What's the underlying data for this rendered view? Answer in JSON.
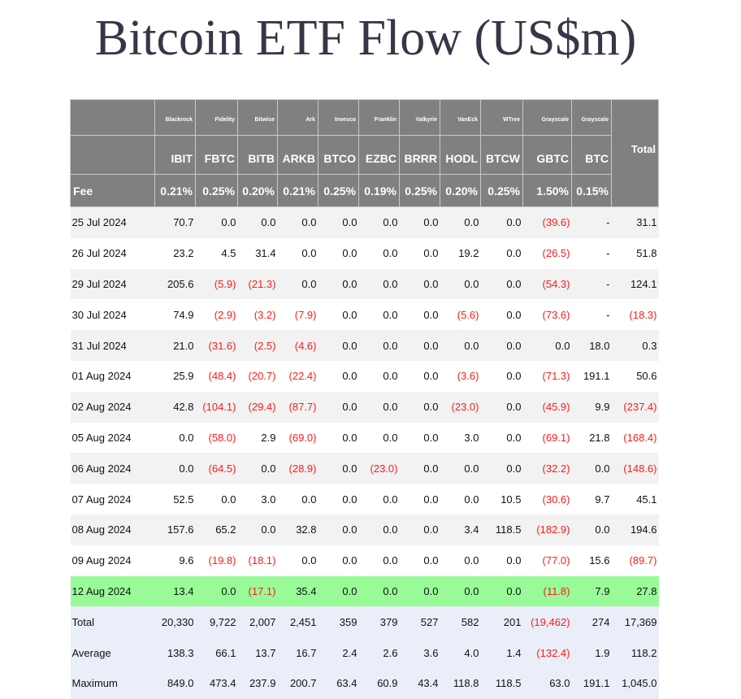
{
  "title": "Bitcoin ETF Flow (US$m)",
  "colors": {
    "header_bg": "#808080",
    "negative": "#ff1a1a",
    "highlight": "#98fb98",
    "summary_bg": "#eaeef8"
  },
  "columns": [
    {
      "issuer": "Blackrock",
      "ticker": "IBIT",
      "fee": "0.21%"
    },
    {
      "issuer": "Fidelity",
      "ticker": "FBTC",
      "fee": "0.25%"
    },
    {
      "issuer": "Bitwise",
      "ticker": "BITB",
      "fee": "0.20%"
    },
    {
      "issuer": "Ark",
      "ticker": "ARKB",
      "fee": "0.21%"
    },
    {
      "issuer": "Invesco",
      "ticker": "BTCO",
      "fee": "0.25%"
    },
    {
      "issuer": "Franklin",
      "ticker": "EZBC",
      "fee": "0.19%"
    },
    {
      "issuer": "Valkyrie",
      "ticker": "BRRR",
      "fee": "0.25%"
    },
    {
      "issuer": "VanEck",
      "ticker": "HODL",
      "fee": "0.20%"
    },
    {
      "issuer": "WTree",
      "ticker": "BTCW",
      "fee": "0.25%"
    },
    {
      "issuer": "Grayscale",
      "ticker": "GBTC",
      "fee": "1.50%"
    },
    {
      "issuer": "Grayscale",
      "ticker": "BTC",
      "fee": "0.15%"
    }
  ],
  "total_header": "Total",
  "fee_label": "Fee",
  "rows": [
    {
      "date": "25 Jul 2024",
      "values": [
        "70.7",
        "0.0",
        "0.0",
        "0.0",
        "0.0",
        "0.0",
        "0.0",
        "0.0",
        "0.0",
        "(39.6)",
        "-",
        "31.1"
      ]
    },
    {
      "date": "26 Jul 2024",
      "values": [
        "23.2",
        "4.5",
        "31.4",
        "0.0",
        "0.0",
        "0.0",
        "0.0",
        "19.2",
        "0.0",
        "(26.5)",
        "-",
        "51.8"
      ]
    },
    {
      "date": "29 Jul 2024",
      "values": [
        "205.6",
        "(5.9)",
        "(21.3)",
        "0.0",
        "0.0",
        "0.0",
        "0.0",
        "0.0",
        "0.0",
        "(54.3)",
        "-",
        "124.1"
      ]
    },
    {
      "date": "30 Jul 2024",
      "values": [
        "74.9",
        "(2.9)",
        "(3.2)",
        "(7.9)",
        "0.0",
        "0.0",
        "0.0",
        "(5.6)",
        "0.0",
        "(73.6)",
        "-",
        "(18.3)"
      ]
    },
    {
      "date": "31 Jul 2024",
      "values": [
        "21.0",
        "(31.6)",
        "(2.5)",
        "(4.6)",
        "0.0",
        "0.0",
        "0.0",
        "0.0",
        "0.0",
        "0.0",
        "18.0",
        "0.3"
      ]
    },
    {
      "date": "01 Aug 2024",
      "values": [
        "25.9",
        "(48.4)",
        "(20.7)",
        "(22.4)",
        "0.0",
        "0.0",
        "0.0",
        "(3.6)",
        "0.0",
        "(71.3)",
        "191.1",
        "50.6"
      ]
    },
    {
      "date": "02 Aug 2024",
      "values": [
        "42.8",
        "(104.1)",
        "(29.4)",
        "(87.7)",
        "0.0",
        "0.0",
        "0.0",
        "(23.0)",
        "0.0",
        "(45.9)",
        "9.9",
        "(237.4)"
      ]
    },
    {
      "date": "05 Aug 2024",
      "values": [
        "0.0",
        "(58.0)",
        "2.9",
        "(69.0)",
        "0.0",
        "0.0",
        "0.0",
        "3.0",
        "0.0",
        "(69.1)",
        "21.8",
        "(168.4)"
      ]
    },
    {
      "date": "06 Aug 2024",
      "values": [
        "0.0",
        "(64.5)",
        "0.0",
        "(28.9)",
        "0.0",
        "(23.0)",
        "0.0",
        "0.0",
        "0.0",
        "(32.2)",
        "0.0",
        "(148.6)"
      ]
    },
    {
      "date": "07 Aug 2024",
      "values": [
        "52.5",
        "0.0",
        "3.0",
        "0.0",
        "0.0",
        "0.0",
        "0.0",
        "0.0",
        "10.5",
        "(30.6)",
        "9.7",
        "45.1"
      ]
    },
    {
      "date": "08 Aug 2024",
      "values": [
        "157.6",
        "65.2",
        "0.0",
        "32.8",
        "0.0",
        "0.0",
        "0.0",
        "3.4",
        "118.5",
        "(182.9)",
        "0.0",
        "194.6"
      ]
    },
    {
      "date": "09 Aug 2024",
      "values": [
        "9.6",
        "(19.8)",
        "(18.1)",
        "0.0",
        "0.0",
        "0.0",
        "0.0",
        "0.0",
        "0.0",
        "(77.0)",
        "15.6",
        "(89.7)"
      ]
    },
    {
      "date": "12 Aug 2024",
      "highlight": true,
      "values": [
        "13.4",
        "0.0",
        "(17.1)",
        "35.4",
        "0.0",
        "0.0",
        "0.0",
        "0.0",
        "0.0",
        "(11.8)",
        "7.9",
        "27.8"
      ]
    }
  ],
  "summary": [
    {
      "label": "Total",
      "values": [
        "20,330",
        "9,722",
        "2,007",
        "2,451",
        "359",
        "379",
        "527",
        "582",
        "201",
        "(19,462)",
        "274",
        "17,369"
      ]
    },
    {
      "label": "Average",
      "values": [
        "138.3",
        "66.1",
        "13.7",
        "16.7",
        "2.4",
        "2.6",
        "3.6",
        "4.0",
        "1.4",
        "(132.4)",
        "1.9",
        "118.2"
      ]
    },
    {
      "label": "Maximum",
      "values": [
        "849.0",
        "473.4",
        "237.9",
        "200.7",
        "63.4",
        "60.9",
        "43.4",
        "118.8",
        "118.5",
        "63.0",
        "191.1",
        "1,045.0"
      ]
    }
  ]
}
